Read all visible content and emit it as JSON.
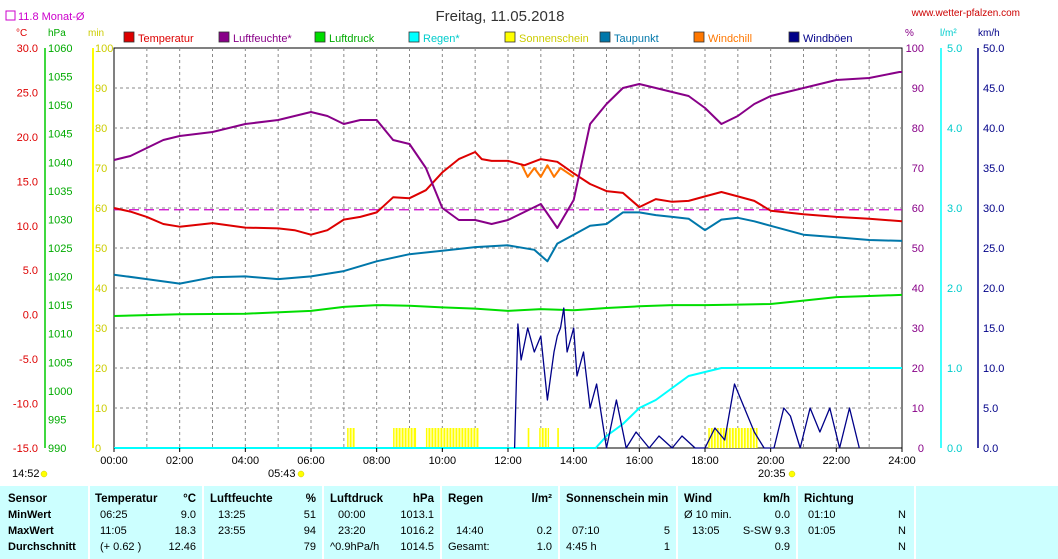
{
  "header": {
    "title": "Freitag, 11.05.2018",
    "website": "www.wetter-pfalzen.com",
    "monthly_avg_label": "11.8 Monat-Ø",
    "unit_celsius": "°C",
    "unit_hpa": "hPa",
    "unit_min": "min",
    "unit_percent": "%",
    "unit_lm2": "l/m²",
    "unit_kmh": "km/h"
  },
  "legend": [
    {
      "label": "Temperatur",
      "color": "#dd0000"
    },
    {
      "label": "Luftfeuchte*",
      "color": "#880088"
    },
    {
      "label": "Luftdruck",
      "color": "#00dd00"
    },
    {
      "label": "Regen*",
      "color": "#00ffff"
    },
    {
      "label": "Sonnenschein",
      "color": "#ffff00"
    },
    {
      "label": "Taupunkt",
      "color": "#0077aa"
    },
    {
      "label": "Windchill",
      "color": "#ff7700"
    },
    {
      "label": "Windböen",
      "color": "#000088"
    }
  ],
  "axes": {
    "temp_ticks": [
      "30.0",
      "25.0",
      "20.0",
      "15.0",
      "10.0",
      "5.0",
      "0.0",
      "-5.0",
      "-10.0",
      "-15.0"
    ],
    "hpa_ticks": [
      "1060",
      "1055",
      "1050",
      "1045",
      "1040",
      "1035",
      "1030",
      "1025",
      "1020",
      "1015",
      "1010",
      "1005",
      "1000",
      "995",
      "990"
    ],
    "min_ticks": [
      "100",
      "90",
      "80",
      "70",
      "60",
      "50",
      "40",
      "30",
      "20",
      "10",
      "0"
    ],
    "pct_ticks": [
      "100",
      "90",
      "80",
      "70",
      "60",
      "50",
      "40",
      "30",
      "20",
      "10",
      "0"
    ],
    "rain_ticks": [
      "5.0",
      "4.0",
      "3.0",
      "2.0",
      "1.0",
      "0.0"
    ],
    "kmh_ticks": [
      "50.0",
      "45.0",
      "40.0",
      "35.0",
      "30.0",
      "25.0",
      "20.0",
      "15.0",
      "10.0",
      "5.0",
      "0.0"
    ],
    "time_ticks": [
      "00:00",
      "02:00",
      "04:00",
      "06:00",
      "08:00",
      "10:00",
      "12:00",
      "14:00",
      "16:00",
      "18:00",
      "20:00",
      "22:00",
      "24:00"
    ],
    "sunrise": "05:43",
    "sunset": "20:35",
    "daylength": "14:52"
  },
  "chart_data": {
    "type": "line",
    "title": "Freitag, 11.05.2018",
    "x_range_hours": [
      0,
      24
    ],
    "ylim_temperature": [
      -15,
      30
    ],
    "ylim_pressure": [
      990,
      1060
    ],
    "ylim_sunshine_min": [
      0,
      100
    ],
    "ylim_humidity_pct": [
      0,
      100
    ],
    "ylim_rain": [
      0,
      5
    ],
    "ylim_wind": [
      0,
      50
    ],
    "monthly_avg_temperature": 11.8,
    "grid": true,
    "series": [
      {
        "name": "Temperatur",
        "axis": "temperature",
        "color": "#dd0000",
        "x": [
          0,
          0.5,
          1,
          1.5,
          2,
          3,
          4,
          5,
          5.5,
          6,
          6.5,
          7,
          7.5,
          8,
          8.5,
          9,
          9.5,
          10,
          10.5,
          11,
          11.2,
          11.5,
          12,
          12.5,
          13,
          13.5,
          14,
          14.5,
          15,
          15.5,
          16,
          16.5,
          17,
          17.5,
          18,
          18.5,
          19,
          19.5,
          20,
          21,
          22,
          23,
          24
        ],
        "values": [
          12.0,
          11.6,
          11.0,
          10.2,
          9.9,
          10.3,
          9.8,
          9.7,
          9.5,
          9.0,
          9.5,
          10.7,
          11.0,
          11.5,
          13.2,
          13.1,
          14.0,
          16.0,
          17.5,
          18.3,
          17.5,
          17.3,
          17.3,
          16.8,
          17.5,
          17.2,
          15.9,
          14.7,
          13.9,
          13.7,
          12.1,
          13.0,
          12.7,
          12.8,
          13.3,
          13.8,
          13.3,
          12.8,
          11.7,
          11.3,
          11.0,
          10.8,
          10.5
        ]
      },
      {
        "name": "Luftfeuchte*",
        "axis": "humidity",
        "color": "#880088",
        "x": [
          0,
          0.5,
          1,
          1.5,
          2,
          3,
          4,
          5,
          5.5,
          6,
          6.5,
          7,
          7.5,
          8,
          8.5,
          9,
          9.5,
          10,
          10.5,
          11,
          11.5,
          12,
          12.5,
          13,
          13.5,
          14,
          14.5,
          15,
          15.5,
          16,
          16.5,
          17,
          17.5,
          18,
          18.5,
          19,
          19.5,
          20,
          21,
          22,
          23,
          23.92,
          24
        ],
        "values": [
          72,
          73,
          75,
          77,
          78,
          79,
          81,
          82,
          83,
          84,
          83,
          81,
          82,
          82,
          77,
          76,
          70,
          60,
          57,
          57,
          56,
          57,
          59,
          61,
          55,
          62,
          81,
          86,
          90,
          91,
          90,
          89,
          88,
          85,
          81,
          83,
          86,
          88,
          90,
          92,
          92.5,
          94,
          94
        ]
      },
      {
        "name": "Luftdruck",
        "axis": "pressure",
        "color": "#00dd00",
        "x": [
          0,
          2,
          4,
          6,
          7,
          8,
          9,
          10,
          11,
          12,
          13,
          14,
          15,
          16,
          17,
          18,
          19,
          20,
          21,
          22,
          23,
          24
        ],
        "values": [
          1013.1,
          1013.4,
          1013.5,
          1014.0,
          1014.7,
          1015.0,
          1014.9,
          1014.6,
          1014.4,
          1014.0,
          1014.3,
          1014.1,
          1014.5,
          1014.8,
          1015.0,
          1015.0,
          1015.1,
          1015.2,
          1015.8,
          1016.4,
          1016.6,
          1016.8
        ]
      },
      {
        "name": "Regen*",
        "axis": "rain",
        "color": "#00ffff",
        "x": [
          0,
          14.67,
          15,
          15.5,
          16,
          16.5,
          17,
          17.5,
          18,
          18.5,
          19,
          20,
          21,
          22,
          23,
          24
        ],
        "values": [
          0,
          0,
          0.15,
          0.3,
          0.5,
          0.6,
          0.75,
          0.9,
          0.95,
          1.0,
          1.0,
          1.0,
          1.0,
          1.0,
          1.0,
          1.0
        ]
      },
      {
        "name": "Taupunkt",
        "axis": "temperature",
        "color": "#0077aa",
        "x": [
          0,
          1,
          2,
          3,
          4,
          5,
          6,
          7,
          8,
          9,
          10,
          11,
          12,
          12.8,
          13.2,
          13.5,
          14,
          14.5,
          15,
          15.5,
          16,
          16.5,
          17,
          17.5,
          18,
          18.5,
          19,
          19.5,
          20,
          21,
          22,
          23,
          24
        ],
        "values": [
          4.5,
          4.0,
          3.5,
          4.2,
          4.3,
          4.0,
          4.3,
          4.9,
          6.0,
          6.8,
          7.2,
          7.6,
          7.8,
          7.3,
          6.0,
          8.0,
          9.0,
          10.0,
          10.2,
          11.5,
          11.5,
          11.2,
          11.0,
          10.8,
          9.5,
          10.7,
          10.9,
          10.5,
          10.0,
          9.0,
          8.7,
          8.4,
          8.3
        ]
      },
      {
        "name": "Windchill",
        "axis": "temperature",
        "color": "#ff7700",
        "x": [
          12.4,
          12.6,
          12.8,
          13.0,
          13.2,
          13.4,
          13.6,
          14.0
        ],
        "values": [
          17.0,
          15.5,
          16.5,
          15.5,
          16.8,
          15.5,
          16.5,
          15.5
        ]
      },
      {
        "name": "Windböen",
        "axis": "wind",
        "color": "#000088",
        "x": [
          12.2,
          12.3,
          12.4,
          12.6,
          12.8,
          13.0,
          13.2,
          13.4,
          13.5,
          13.6,
          13.7,
          13.8,
          14.0,
          14.1,
          14.3,
          14.5,
          14.7,
          15.0,
          15.3,
          15.6,
          15.9,
          16.3,
          16.6,
          17.0,
          17.3,
          17.7,
          18.0,
          18.3,
          18.6,
          18.9,
          19.2,
          19.5,
          19.8,
          20.1,
          20.4,
          20.6,
          20.9,
          21.2,
          21.5,
          21.8,
          22.1,
          22.4,
          22.7
        ],
        "values": [
          0,
          15.5,
          11,
          15,
          12,
          14,
          6,
          12,
          14,
          15,
          17.5,
          12,
          15,
          9,
          12,
          5,
          8,
          0,
          6,
          0,
          2,
          0,
          1.5,
          0,
          1.5,
          0,
          0,
          2.5,
          1,
          8,
          5,
          2,
          0,
          0,
          5,
          4,
          0,
          5,
          2,
          5,
          0,
          5,
          0
        ]
      }
    ],
    "sunshine_bars": [
      {
        "start_h": 7.1,
        "end_h": 7.35,
        "value": 5
      },
      {
        "start_h": 8.5,
        "end_h": 9.2,
        "value": 5
      },
      {
        "start_h": 9.5,
        "end_h": 11.1,
        "value": 5
      },
      {
        "start_h": 12.6,
        "end_h": 12.65,
        "value": 5
      },
      {
        "start_h": 12.95,
        "end_h": 13.25,
        "value": 5
      },
      {
        "start_h": 13.5,
        "end_h": 13.55,
        "value": 5
      },
      {
        "start_h": 18.1,
        "end_h": 19.6,
        "value": 5
      }
    ]
  },
  "stats": {
    "sensor": {
      "head": "Sensor",
      "rows": [
        "MinWert",
        "MaxWert",
        "Durchschnitt"
      ]
    },
    "temperature": {
      "head": "Temperatur",
      "unit": "°C",
      "rows": [
        [
          "06:25",
          "9.0"
        ],
        [
          "11:05",
          "18.3"
        ],
        [
          "(+ 0.62 )",
          "12.46"
        ]
      ]
    },
    "humidity": {
      "head": "Luftfeuchte",
      "unit": "%",
      "rows": [
        [
          "13:25",
          "51"
        ],
        [
          "23:55",
          "94"
        ],
        [
          "",
          "79"
        ]
      ]
    },
    "pressure": {
      "head": "Luftdruck",
      "unit": "hPa",
      "rows": [
        [
          "00:00",
          "1013.1"
        ],
        [
          "23:20",
          "1016.2"
        ],
        [
          "^0.9hPa/h",
          "1014.5"
        ]
      ]
    },
    "rain": {
      "head": "Regen",
      "unit": "l/m²",
      "rows": [
        [
          "",
          ""
        ],
        [
          "14:40",
          "0.2"
        ],
        [
          "Gesamt:",
          "1.0"
        ]
      ]
    },
    "sunshine": {
      "head": "Sonnenschein min",
      "unit": "",
      "rows": [
        [
          "",
          ""
        ],
        [
          "07:10",
          "5"
        ],
        [
          "4:45 h",
          "1"
        ]
      ]
    },
    "wind": {
      "head": "Wind",
      "unit": "km/h",
      "rows": [
        [
          "Ø 10 min.",
          "0.0"
        ],
        [
          "13:05",
          "S-SW 9.3"
        ],
        [
          "",
          "0.9"
        ]
      ]
    },
    "direction": {
      "head": "Richtung",
      "unit": "",
      "rows": [
        [
          "01:10",
          "N"
        ],
        [
          "01:05",
          "N"
        ],
        [
          "",
          "N"
        ]
      ]
    }
  }
}
